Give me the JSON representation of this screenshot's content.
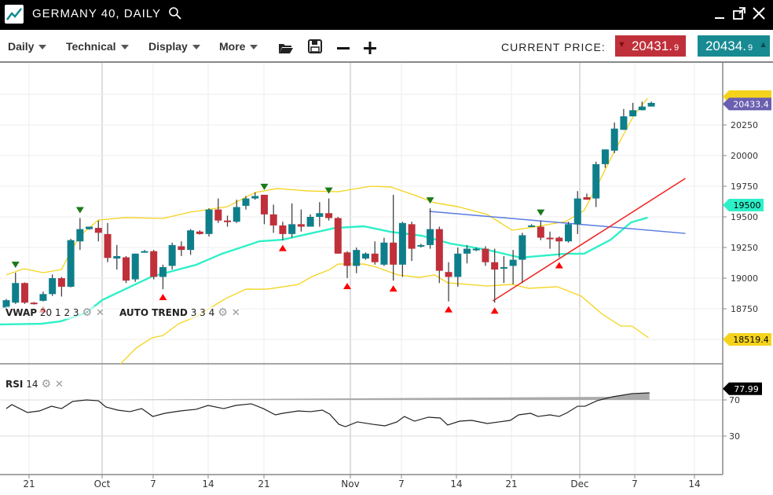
{
  "window": {
    "title": "GERMANY 40, DAILY",
    "icons": [
      "chart-logo-icon",
      "search-icon",
      "minimize-icon",
      "popout-icon",
      "close-icon"
    ]
  },
  "toolbar": {
    "menus": [
      "Daily",
      "Technical",
      "Display",
      "More"
    ],
    "icons": [
      "open-folder-icon",
      "save-icon",
      "zoom-out-icon",
      "zoom-in-icon"
    ],
    "current_price_label": "CURRENT PRICE:",
    "bid": {
      "main": "20431.",
      "small": "9",
      "color": "#c0303a"
    },
    "ask": {
      "main": "20434.",
      "small": "9",
      "color": "#178a92"
    }
  },
  "legends": {
    "vwap": {
      "name": "VWAP",
      "params": "20 1 2 3"
    },
    "autotrend": {
      "name": "AUTO TREND",
      "params": "3 3 4"
    },
    "rsi": {
      "name": "RSI",
      "params": "14"
    }
  },
  "chart_data": {
    "type": "candlestick",
    "price_axis": {
      "ticks": [
        "20250",
        "20000",
        "19750",
        "19500",
        "19250",
        "19000",
        "18750"
      ],
      "range": [
        18200,
        20800
      ],
      "grid": true
    },
    "x_ticks": [
      "21",
      "Oct",
      "7",
      "14",
      "21",
      "Nov",
      "7",
      "14",
      "21",
      "Dec",
      "7",
      "14"
    ],
    "badges": {
      "last": "20433.4",
      "vwap": "19500",
      "lower_band": "18519.4",
      "rsi": "77.99"
    },
    "colors": {
      "up": "#0e7f8a",
      "down": "#c0303a",
      "bands": "#f5d31c",
      "vwap": "#2ef0c8",
      "trend_res": "#5b7be0",
      "trend_sup": "#f02020",
      "last": "#6a5fb0"
    },
    "candles": [
      [
        18760,
        18830,
        18740,
        18820
      ],
      [
        18800,
        19045,
        18790,
        18960
      ],
      [
        18960,
        18965,
        18790,
        18800
      ],
      [
        18800,
        18805,
        18785,
        18790
      ],
      [
        18815,
        18890,
        18810,
        18870
      ],
      [
        18870,
        19030,
        18855,
        19000
      ],
      [
        19000,
        19010,
        18850,
        18930
      ],
      [
        18930,
        19320,
        18925,
        19310
      ],
      [
        19300,
        19490,
        19230,
        19400
      ],
      [
        19400,
        19420,
        19395,
        19420
      ],
      [
        19410,
        19470,
        19300,
        19370
      ],
      [
        19360,
        19450,
        19130,
        19165
      ],
      [
        19160,
        19270,
        19070,
        19180
      ],
      [
        19170,
        19180,
        18960,
        18980
      ],
      [
        18990,
        19200,
        18970,
        19200
      ],
      [
        19210,
        19230,
        19210,
        19220
      ],
      [
        19220,
        19230,
        18990,
        19010
      ],
      [
        19010,
        19110,
        18910,
        19090
      ],
      [
        19100,
        19290,
        19070,
        19270
      ],
      [
        19260,
        19300,
        19180,
        19230
      ],
      [
        19230,
        19400,
        19190,
        19390
      ],
      [
        19380,
        19390,
        19355,
        19360
      ],
      [
        19360,
        19570,
        19340,
        19560
      ],
      [
        19560,
        19650,
        19450,
        19470
      ],
      [
        19470,
        19510,
        19420,
        19460
      ],
      [
        19460,
        19640,
        19450,
        19580
      ],
      [
        19590,
        19670,
        19560,
        19650
      ],
      [
        19650,
        19700,
        19640,
        19670
      ],
      [
        19680,
        19680,
        19440,
        19520
      ],
      [
        19520,
        19600,
        19370,
        19430
      ],
      [
        19430,
        19460,
        19310,
        19360
      ],
      [
        19360,
        19610,
        19330,
        19440
      ],
      [
        19440,
        19560,
        19380,
        19420
      ],
      [
        19420,
        19520,
        19420,
        19500
      ],
      [
        19500,
        19620,
        19420,
        19530
      ],
      [
        19530,
        19650,
        19470,
        19490
      ],
      [
        19490,
        19500,
        19200,
        19200
      ],
      [
        19210,
        19220,
        19000,
        19100
      ],
      [
        19100,
        19250,
        19040,
        19230
      ],
      [
        19160,
        19210,
        19150,
        19200
      ],
      [
        19200,
        19300,
        19110,
        19130
      ],
      [
        19110,
        19330,
        19100,
        19290
      ],
      [
        19290,
        19680,
        18980,
        19110
      ],
      [
        19110,
        19460,
        19010,
        19450
      ],
      [
        19440,
        19460,
        19140,
        19240
      ],
      [
        19260,
        19280,
        19250,
        19270
      ],
      [
        19270,
        19570,
        19240,
        19400
      ],
      [
        19400,
        19420,
        18960,
        19060
      ],
      [
        19050,
        19130,
        18810,
        19010
      ],
      [
        19010,
        19250,
        18930,
        19200
      ],
      [
        19200,
        19270,
        19120,
        19240
      ],
      [
        19230,
        19250,
        19220,
        19240
      ],
      [
        19240,
        19260,
        19100,
        19130
      ],
      [
        19130,
        19240,
        18800,
        19070
      ],
      [
        19080,
        19180,
        18960,
        19090
      ],
      [
        19100,
        19230,
        18950,
        19150
      ],
      [
        19150,
        19370,
        18960,
        19350
      ],
      [
        19420,
        19440,
        19420,
        19430
      ],
      [
        19420,
        19470,
        19310,
        19330
      ],
      [
        19330,
        19380,
        19240,
        19320
      ],
      [
        19330,
        19340,
        19170,
        19300
      ],
      [
        19300,
        19460,
        19290,
        19440
      ],
      [
        19440,
        19710,
        19360,
        19650
      ],
      [
        19660,
        19690,
        19640,
        19640
      ],
      [
        19650,
        19950,
        19580,
        19930
      ],
      [
        19930,
        20050,
        19900,
        20050
      ],
      [
        20040,
        20270,
        20020,
        20220
      ],
      [
        20210,
        20380,
        20210,
        20320
      ],
      [
        20320,
        20430,
        20320,
        20370
      ],
      [
        20370,
        20440,
        20370,
        20400
      ],
      [
        20400,
        20440,
        20400,
        20430
      ]
    ],
    "sell_signals": [
      1,
      8,
      28,
      35,
      46,
      58
    ],
    "buy_signals": [
      4,
      17,
      30,
      37,
      42,
      48,
      53,
      60
    ],
    "upper_band": [
      [
        0,
        19026
      ],
      [
        1.9,
        19077
      ],
      [
        4,
        19045
      ],
      [
        6,
        19070
      ],
      [
        7,
        19218
      ],
      [
        8,
        19346
      ],
      [
        10,
        19474
      ],
      [
        13,
        19494
      ],
      [
        17,
        19487
      ],
      [
        20,
        19539
      ],
      [
        24,
        19583
      ],
      [
        27,
        19699
      ],
      [
        29.4,
        19731
      ],
      [
        32.8,
        19711
      ],
      [
        36,
        19705
      ],
      [
        39.6,
        19750
      ],
      [
        41.7,
        19744
      ],
      [
        44.2,
        19680
      ],
      [
        46.5,
        19615
      ],
      [
        49,
        19583
      ],
      [
        52.2,
        19519
      ],
      [
        54.9,
        19391
      ],
      [
        56.7,
        19410
      ],
      [
        60.7,
        19462
      ],
      [
        62.7,
        19551
      ],
      [
        64.4,
        19795
      ],
      [
        65.8,
        20006
      ],
      [
        68.1,
        20327
      ],
      [
        69.6,
        20468
      ]
    ],
    "lower_band": [
      [
        12.4,
        18301
      ],
      [
        14.1,
        18430
      ],
      [
        15.8,
        18513
      ],
      [
        17,
        18532
      ],
      [
        18.7,
        18628
      ],
      [
        20.6,
        18686
      ],
      [
        23.8,
        18833
      ],
      [
        26,
        18910
      ],
      [
        28.3,
        18910
      ],
      [
        31.7,
        18949
      ],
      [
        33.2,
        19013
      ],
      [
        35.1,
        19070
      ],
      [
        36,
        19115
      ],
      [
        38.8,
        19115
      ],
      [
        40.2,
        19090
      ],
      [
        42.5,
        19026
      ],
      [
        44.8,
        19006
      ],
      [
        46.5,
        19026
      ],
      [
        47.9,
        18962
      ],
      [
        52.2,
        18936
      ],
      [
        54.9,
        18949
      ],
      [
        56.7,
        18917
      ],
      [
        59.8,
        18930
      ],
      [
        62.4,
        18853
      ],
      [
        64.7,
        18705
      ],
      [
        66.7,
        18609
      ],
      [
        67.9,
        18609
      ],
      [
        69.7,
        18513
      ]
    ],
    "vwap": [
      [
        -0.7,
        18622
      ],
      [
        3.8,
        18628
      ],
      [
        5.9,
        18648
      ],
      [
        8.7,
        18718
      ],
      [
        10.4,
        18821
      ],
      [
        15.8,
        19013
      ],
      [
        20.6,
        19109
      ],
      [
        23.4,
        19199
      ],
      [
        27.5,
        19301
      ],
      [
        30,
        19314
      ],
      [
        32.3,
        19353
      ],
      [
        35.7,
        19410
      ],
      [
        38.8,
        19423
      ],
      [
        41.7,
        19378
      ],
      [
        45.1,
        19346
      ],
      [
        48.2,
        19282
      ],
      [
        52.2,
        19231
      ],
      [
        55.8,
        19167
      ],
      [
        60.7,
        19199
      ],
      [
        62.7,
        19199
      ],
      [
        65.6,
        19314
      ],
      [
        67.8,
        19455
      ],
      [
        69.6,
        19494
      ]
    ],
    "trendlines": [
      {
        "kind": "resistance",
        "from": [
          45.9,
          19545
        ],
        "to": [
          73.7,
          19365
        ]
      },
      {
        "kind": "support",
        "from": [
          52.8,
          18814
        ],
        "to": [
          73.7,
          19814
        ]
      }
    ],
    "rsi": {
      "ticks": [
        "70",
        "30"
      ],
      "levels": [
        70,
        30
      ],
      "values": [
        [
          0,
          60.4
        ],
        [
          0.6,
          64.8
        ],
        [
          2.3,
          56.1
        ],
        [
          3.6,
          57.8
        ],
        [
          4.9,
          63
        ],
        [
          6,
          60.4
        ],
        [
          7.2,
          68.3
        ],
        [
          8.7,
          70
        ],
        [
          10,
          69.1
        ],
        [
          10.8,
          62.2
        ],
        [
          12.1,
          58.7
        ],
        [
          13.4,
          57
        ],
        [
          14.7,
          60.4
        ],
        [
          15.9,
          51.7
        ],
        [
          17.2,
          55.2
        ],
        [
          18.9,
          57.8
        ],
        [
          20.6,
          59.6
        ],
        [
          21.9,
          63.9
        ],
        [
          23.6,
          60.4
        ],
        [
          24.9,
          63.9
        ],
        [
          26.6,
          65.7
        ],
        [
          27.9,
          60.4
        ],
        [
          29.2,
          53.5
        ],
        [
          30,
          55.2
        ],
        [
          31.7,
          57.8
        ],
        [
          33,
          57
        ],
        [
          34.3,
          58.7
        ],
        [
          35.1,
          54.3
        ],
        [
          36.1,
          43
        ],
        [
          36.8,
          40.4
        ],
        [
          38.1,
          45.7
        ],
        [
          39.8,
          43
        ],
        [
          41.1,
          41.3
        ],
        [
          42.4,
          45.7
        ],
        [
          43.2,
          51.7
        ],
        [
          44.3,
          46.5
        ],
        [
          45.8,
          50.9
        ],
        [
          47.1,
          50
        ],
        [
          47.9,
          42.2
        ],
        [
          49.2,
          46.5
        ],
        [
          50.5,
          47.4
        ],
        [
          52.2,
          43.9
        ],
        [
          53.5,
          45.7
        ],
        [
          54.7,
          47.4
        ],
        [
          55.6,
          53.5
        ],
        [
          56.9,
          55.2
        ],
        [
          57.7,
          51.7
        ],
        [
          59,
          53.5
        ],
        [
          60,
          51.7
        ],
        [
          60.9,
          56.1
        ],
        [
          62,
          63
        ],
        [
          62.8,
          63
        ],
        [
          64.1,
          69.1
        ],
        [
          65.8,
          73.5
        ],
        [
          67.9,
          77
        ],
        [
          69.8,
          77.8
        ]
      ]
    }
  }
}
